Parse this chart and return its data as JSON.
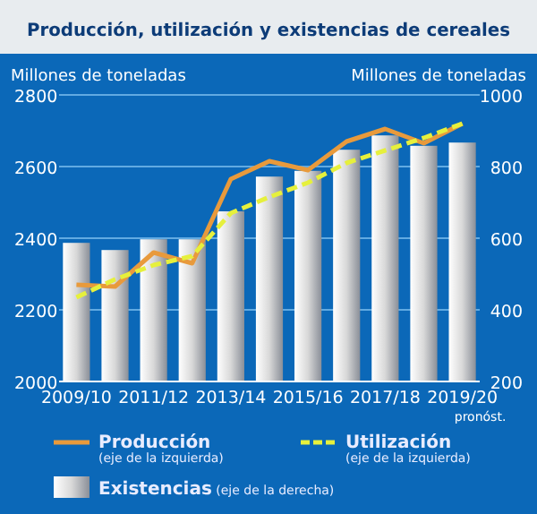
{
  "chart_data": {
    "type": "bar",
    "title": "Producción, utilización y existencias de cereales",
    "ylabel": "Millones de toneladas",
    "y2label": "Millones de toneladas",
    "categories": [
      "2009/10",
      null,
      "2011/12",
      null,
      "2013/14",
      null,
      "2015/16",
      null,
      "2017/18",
      null,
      "2019/20"
    ],
    "series": [
      {
        "name": "Existencias (eje de la derecha)",
        "type": "bar",
        "axis": "y2",
        "color": "#d8d8d8",
        "values": [
          587,
          567,
          597,
          597,
          675,
          772,
          788,
          847,
          887,
          858,
          867
        ]
      },
      {
        "name": "Producción (eje de la izquierda)",
        "type": "line",
        "color": "#e89a3c",
        "line_style": "solid",
        "values": [
          2270,
          2265,
          2360,
          2330,
          2565,
          2615,
          2590,
          2670,
          2705,
          2665,
          2720
        ]
      },
      {
        "name": "Utilización (eje de la izquierda)",
        "type": "line",
        "color": "#e6f03c",
        "line_style": "dashed",
        "values": [
          2235,
          2285,
          2325,
          2350,
          2470,
          2515,
          2555,
          2610,
          2645,
          2680,
          2720
        ]
      }
    ],
    "ylim": [
      2000,
      2800
    ],
    "yticks": [
      2000,
      2200,
      2400,
      2600,
      2800
    ],
    "y2lim": [
      200,
      1000
    ],
    "y2ticks": [
      200,
      400,
      600,
      800,
      1000
    ],
    "grid": "y",
    "legend": "bottom",
    "annotations": [
      "pronóst."
    ]
  }
}
